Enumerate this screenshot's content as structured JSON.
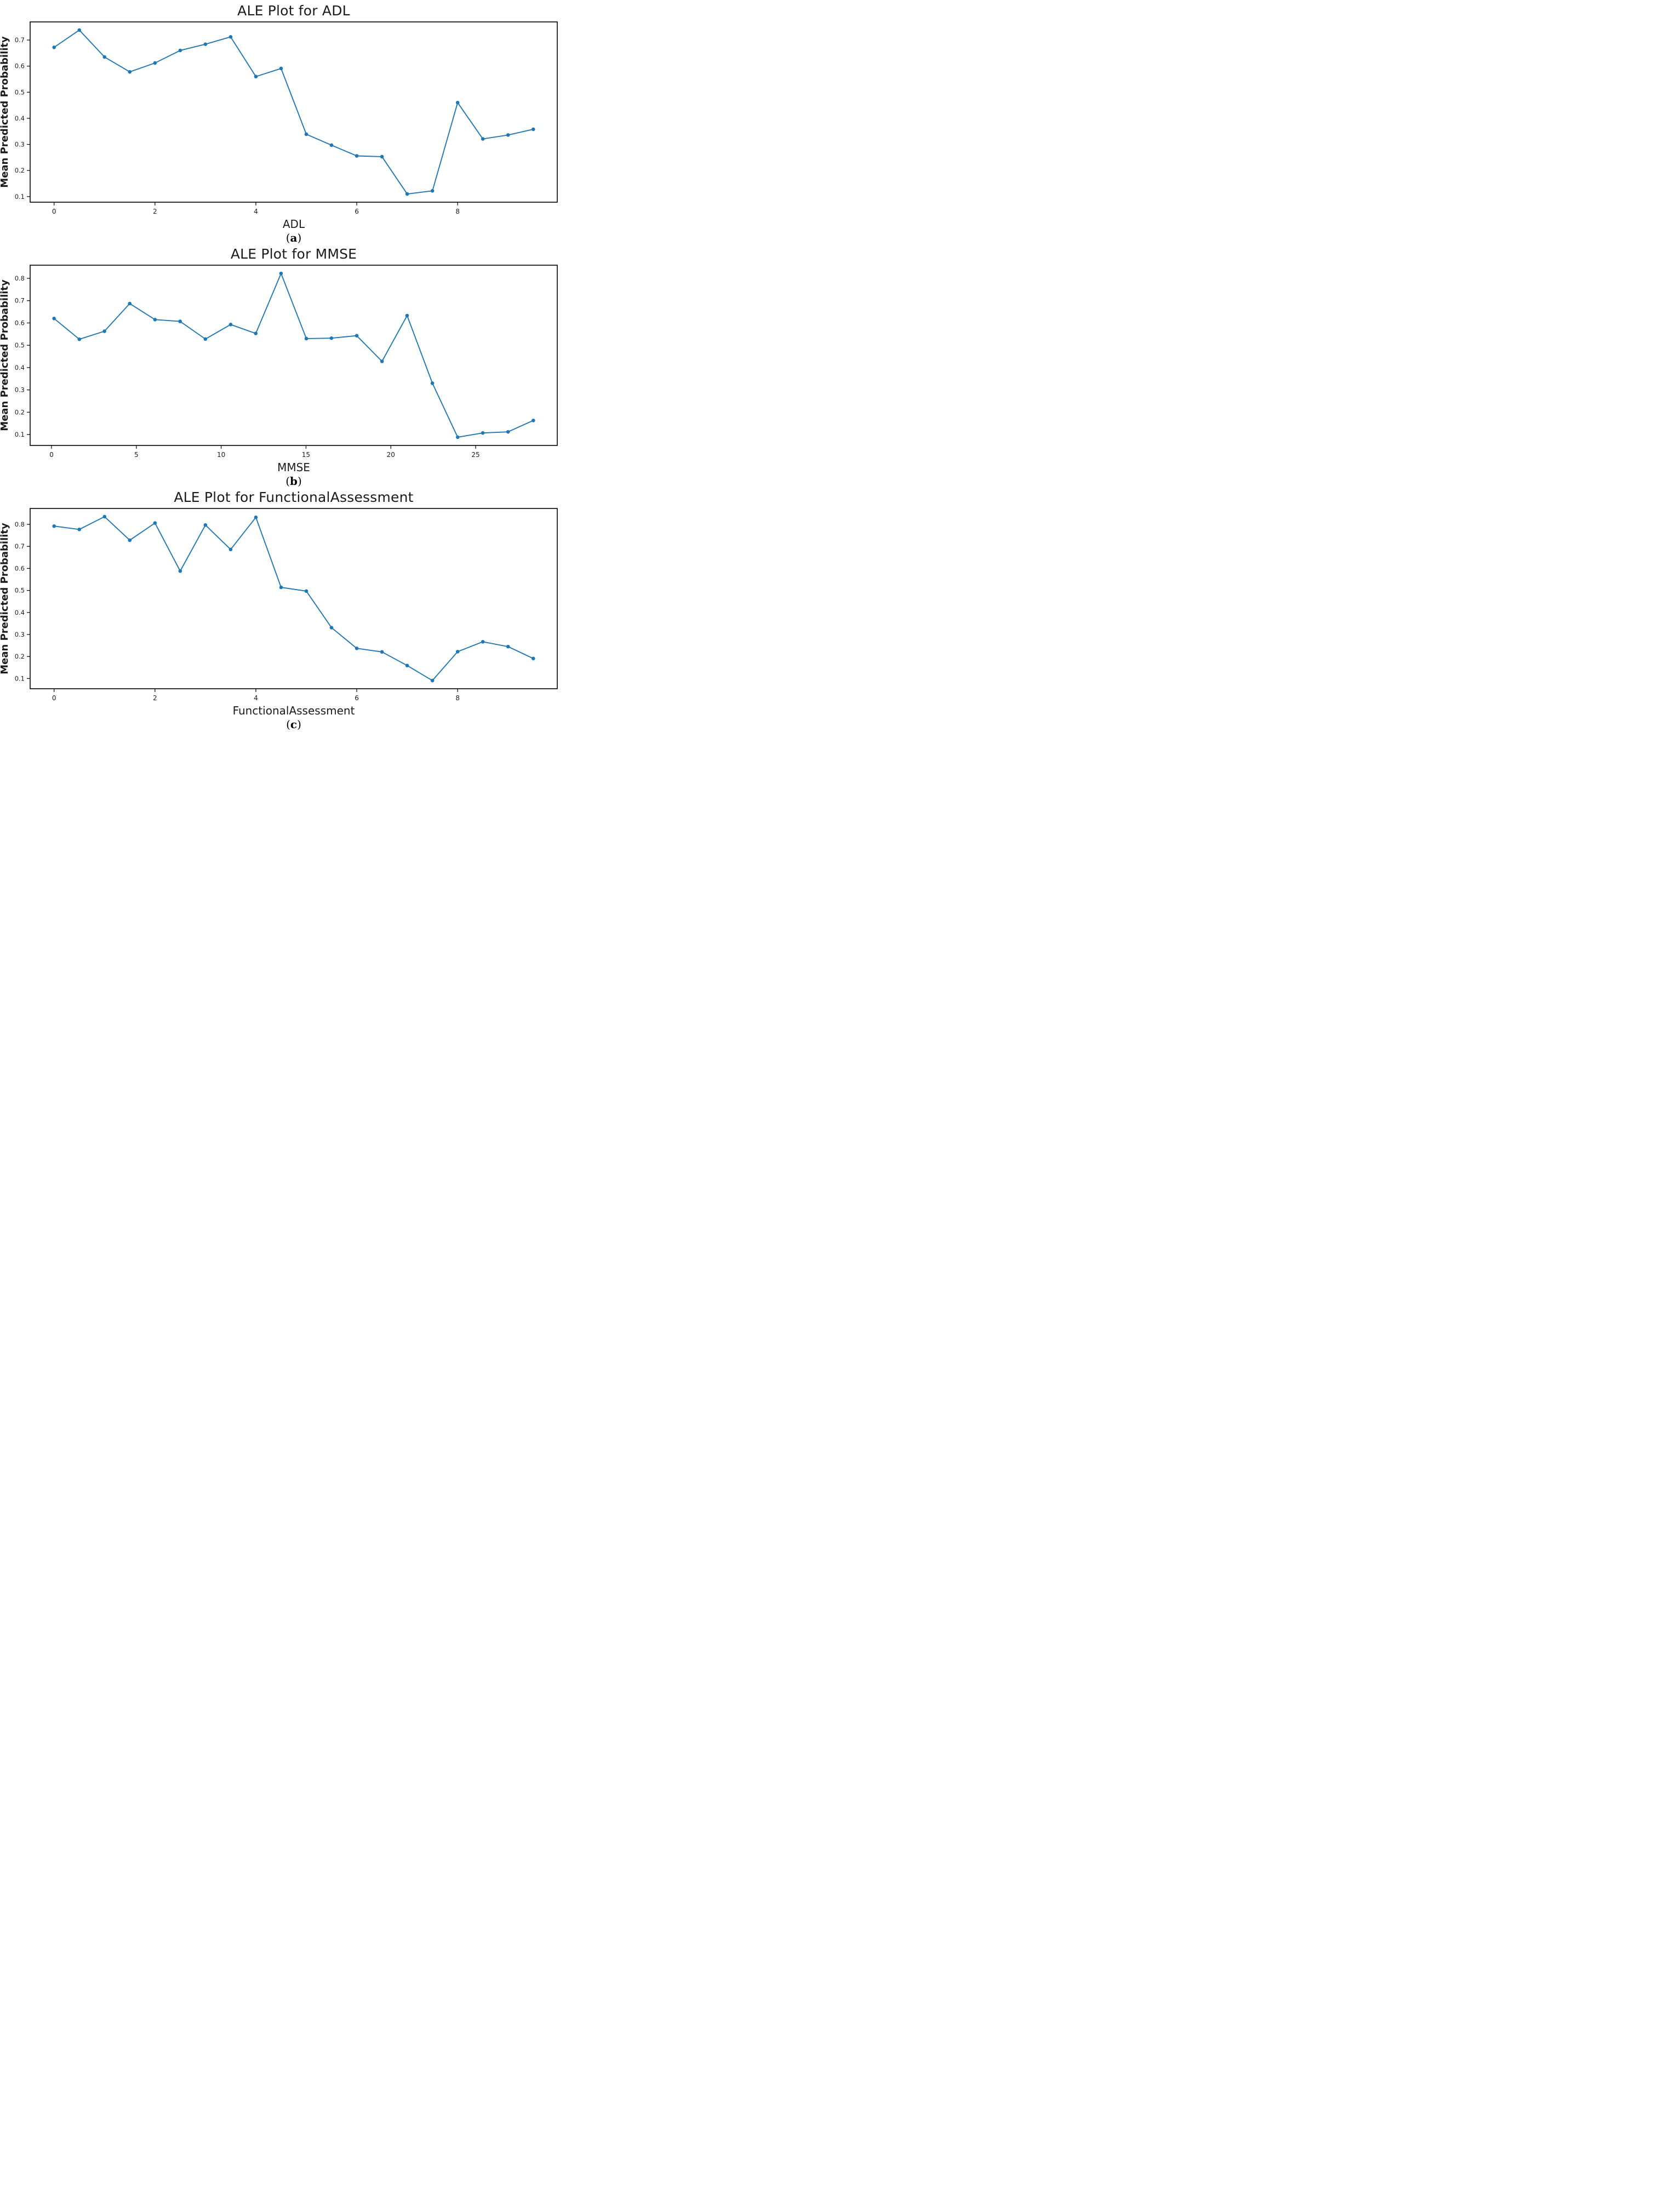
{
  "page": {
    "background": "#ffffff",
    "text_color": "#1a1a1a"
  },
  "chart_data": [
    {
      "type": "line",
      "title": "ALE Plot for ADL",
      "xlabel": "ADL",
      "ylabel": "Mean Predicted Probability",
      "caption": {
        "open": "(",
        "letter": "a",
        "close": ")"
      },
      "x": [
        0,
        0.5,
        1,
        1.5,
        2,
        2.5,
        3,
        3.5,
        4,
        4.5,
        5,
        5.5,
        6,
        6.5,
        7,
        7.5,
        8,
        8.5,
        9,
        9.5
      ],
      "y": [
        0.672,
        0.738,
        0.635,
        0.578,
        0.612,
        0.66,
        0.684,
        0.712,
        0.56,
        0.591,
        0.339,
        0.297,
        0.256,
        0.253,
        0.11,
        0.122,
        0.46,
        0.321,
        0.336,
        0.358
      ],
      "xlim": [
        -0.475,
        9.975
      ],
      "ylim": [
        0.0786,
        0.7694
      ],
      "xticks": [
        0,
        2,
        4,
        6,
        8
      ],
      "yticks": [
        0.1,
        0.2,
        0.3,
        0.4,
        0.5,
        0.6,
        0.7
      ],
      "line_color": "#1f77b4",
      "marker": "circle",
      "grid": false,
      "legend": null
    },
    {
      "type": "line",
      "title": "ALE Plot for MMSE",
      "xlabel": "MMSE",
      "ylabel": "Mean Predicted Probability",
      "caption": {
        "open": "(",
        "letter": "b",
        "close": ")"
      },
      "x": [
        0.15,
        1.64,
        3.12,
        4.61,
        6.1,
        7.58,
        9.07,
        10.56,
        12.04,
        13.53,
        15.02,
        16.5,
        17.99,
        19.48,
        20.96,
        22.45,
        23.94,
        25.42,
        26.91,
        28.4
      ],
      "y": [
        0.62,
        0.527,
        0.563,
        0.687,
        0.615,
        0.607,
        0.528,
        0.593,
        0.553,
        0.822,
        0.53,
        0.532,
        0.543,
        0.428,
        0.633,
        0.33,
        0.088,
        0.107,
        0.112,
        0.163
      ],
      "xlim": [
        -1.26,
        29.81
      ],
      "ylim": [
        0.051,
        0.859
      ],
      "xticks": [
        0,
        5,
        10,
        15,
        20,
        25
      ],
      "yticks": [
        0.1,
        0.2,
        0.3,
        0.4,
        0.5,
        0.6,
        0.7,
        0.8
      ],
      "line_color": "#1f77b4",
      "marker": "circle",
      "grid": false,
      "legend": null
    },
    {
      "type": "line",
      "title": "ALE Plot for FunctionalAssessment",
      "xlabel": "FunctionalAssessment",
      "ylabel": "Mean Predicted Probability",
      "caption": {
        "open": "(",
        "letter": "c",
        "close": ")"
      },
      "x": [
        0,
        0.5,
        1,
        1.5,
        2,
        2.5,
        3,
        3.5,
        4,
        4.5,
        5,
        5.5,
        6,
        6.5,
        7,
        7.5,
        8,
        8.5,
        9,
        9.5
      ],
      "y": [
        0.792,
        0.777,
        0.835,
        0.728,
        0.806,
        0.588,
        0.797,
        0.686,
        0.832,
        0.514,
        0.497,
        0.331,
        0.237,
        0.221,
        0.159,
        0.091,
        0.222,
        0.267,
        0.245,
        0.191
      ],
      "xlim": [
        -0.475,
        9.975
      ],
      "ylim": [
        0.0538,
        0.8722
      ],
      "xticks": [
        0,
        2,
        4,
        6,
        8
      ],
      "yticks": [
        0.1,
        0.2,
        0.3,
        0.4,
        0.5,
        0.6,
        0.7,
        0.8
      ],
      "line_color": "#1f77b4",
      "marker": "circle",
      "grid": false,
      "legend": null
    }
  ]
}
